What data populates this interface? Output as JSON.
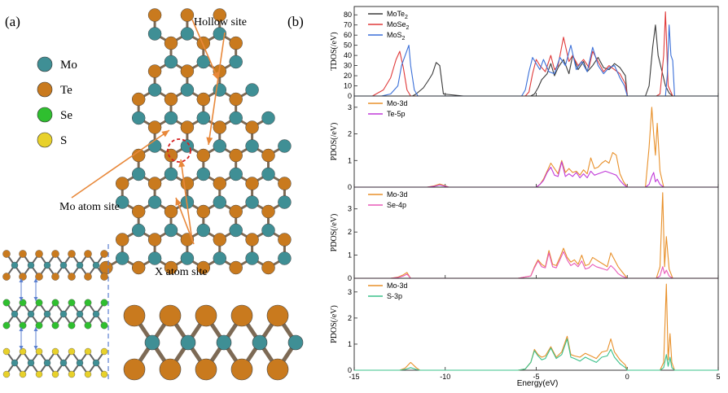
{
  "panel_a": {
    "label": "(a)",
    "atom_legend": [
      {
        "name": "Mo",
        "color": "#3f8f95"
      },
      {
        "name": "Te",
        "color": "#c97a1e"
      },
      {
        "name": "Se",
        "color": "#2fbf2f"
      },
      {
        "name": "S",
        "color": "#e8d12a"
      }
    ],
    "site_labels": {
      "hollow": "Hollow site",
      "mo_atom": "Mo atom site",
      "x_atom": "X atom site"
    },
    "colors": {
      "arrow": "#e8883a",
      "highlight": "#d62020",
      "bond": "#8a8a8a"
    }
  },
  "panel_b": {
    "label": "(b)",
    "xlabel": "Energy(eV)"
  },
  "chart_data": [
    {
      "type": "line",
      "ylabel": "TDOS(/eV)",
      "xlim": [
        -15,
        5
      ],
      "ylim": [
        0,
        85
      ],
      "yticks": [
        0,
        10,
        20,
        30,
        40,
        50,
        60,
        70,
        80
      ],
      "series": [
        {
          "name": "MoTe2",
          "label_base": "MoTe",
          "label_sub": "2",
          "color": "#3a3a3a",
          "x": [
            -15,
            -14,
            -12.6,
            -12.3,
            -12.1,
            -11.95,
            -11.8,
            -11.6,
            -11.2,
            -10.9,
            -10.7,
            -10.5,
            -10.3,
            -10.1,
            -9,
            -5.3,
            -5.1,
            -4.9,
            -4.7,
            -4.4,
            -4.2,
            -4.0,
            -3.8,
            -3.5,
            -3.2,
            -3.0,
            -2.7,
            -2.4,
            -2.2,
            -1.9,
            -1.6,
            -1.3,
            -1.0,
            -0.7,
            -0.4,
            -0.1,
            0,
            1,
            1.2,
            1.4,
            1.55,
            1.7,
            1.9,
            2.1,
            2.3,
            2.5,
            5
          ],
          "y": [
            0,
            0,
            0,
            0,
            0,
            0,
            0,
            2,
            8,
            16,
            22,
            33,
            30,
            2,
            0,
            0,
            2,
            8,
            16,
            22,
            32,
            20,
            28,
            36,
            22,
            40,
            26,
            34,
            24,
            30,
            38,
            28,
            26,
            32,
            28,
            20,
            0,
            0,
            10,
            48,
            70,
            40,
            25,
            10,
            3,
            0,
            0
          ]
        },
        {
          "name": "MoSe2",
          "label_base": "MoSe",
          "label_sub": "2",
          "color": "#e03a3a",
          "x": [
            -15,
            -14,
            -13.8,
            -13.4,
            -13.0,
            -12.7,
            -12.5,
            -12.3,
            -12.1,
            -11.9,
            -11.5,
            -10,
            -5.6,
            -5.4,
            -5.2,
            -5.0,
            -4.8,
            -4.5,
            -4.2,
            -4.0,
            -3.8,
            -3.5,
            -3.2,
            -3.0,
            -2.7,
            -2.4,
            -2.1,
            -1.9,
            -1.6,
            -1.3,
            -1.0,
            -0.7,
            -0.4,
            -0.1,
            0,
            1,
            1.6,
            1.8,
            2.0,
            2.1,
            2.25,
            2.5,
            5
          ],
          "y": [
            0,
            0,
            2,
            6,
            18,
            36,
            44,
            28,
            6,
            0,
            0,
            0,
            0,
            4,
            22,
            36,
            30,
            24,
            40,
            26,
            30,
            58,
            34,
            40,
            30,
            36,
            28,
            44,
            34,
            24,
            30,
            26,
            22,
            12,
            0,
            0,
            0,
            2,
            40,
            83,
            10,
            0,
            0
          ]
        },
        {
          "name": "MoS2",
          "label_base": "MoS",
          "label_sub": "2",
          "color": "#3a6fd8",
          "x": [
            -15,
            -14.2,
            -13.5,
            -13.0,
            -12.6,
            -12.4,
            -12.2,
            -12.0,
            -11.9,
            -11.7,
            -11.5,
            -10,
            -5.8,
            -5.6,
            -5.4,
            -5.2,
            -5.0,
            -4.8,
            -4.6,
            -4.3,
            -4.0,
            -3.7,
            -3.4,
            -3.1,
            -2.8,
            -2.5,
            -2.2,
            -1.9,
            -1.6,
            -1.3,
            -1.0,
            -0.7,
            -0.4,
            -0.15,
            0,
            1,
            2.1,
            2.2,
            2.3,
            2.4,
            2.5,
            2.6,
            5
          ],
          "y": [
            0,
            0,
            0,
            2,
            10,
            30,
            40,
            50,
            30,
            6,
            0,
            0,
            0,
            6,
            24,
            38,
            32,
            26,
            36,
            24,
            22,
            38,
            30,
            50,
            26,
            34,
            24,
            48,
            30,
            22,
            28,
            30,
            18,
            10,
            0,
            0,
            0,
            20,
            70,
            40,
            35,
            0,
            0
          ]
        }
      ]
    },
    {
      "type": "line",
      "ylabel": "PDOS(/eV)",
      "xlim": [
        -15,
        5
      ],
      "ylim": [
        0,
        3.3
      ],
      "yticks": [
        0,
        1,
        2,
        3
      ],
      "series": [
        {
          "name": "Mo-3d",
          "color": "#e8902a",
          "x": [
            -15,
            -11,
            -10.6,
            -10.3,
            -10.0,
            -9.8,
            -5,
            -4.8,
            -4.6,
            -4.4,
            -4.2,
            -4.0,
            -3.8,
            -3.6,
            -3.4,
            -3.2,
            -3.0,
            -2.8,
            -2.6,
            -2.4,
            -2.2,
            -2.0,
            -1.8,
            -1.6,
            -1.4,
            -1.2,
            -1.0,
            -0.8,
            -0.6,
            -0.4,
            -0.2,
            0,
            1.0,
            1.2,
            1.35,
            1.45,
            1.55,
            1.65,
            1.8,
            2.0,
            5
          ],
          "y": [
            0,
            0,
            0.05,
            0.12,
            0.05,
            0,
            0,
            0.1,
            0.3,
            0.6,
            0.9,
            0.7,
            0.5,
            1.0,
            0.55,
            0.7,
            0.55,
            0.6,
            0.45,
            0.65,
            0.5,
            1.1,
            0.7,
            0.75,
            0.9,
            1.0,
            0.9,
            1.3,
            1.2,
            0.5,
            0.2,
            0,
            0,
            1.5,
            3.0,
            2.0,
            1.2,
            2.4,
            0.6,
            0,
            0
          ]
        },
        {
          "name": "Te-5p",
          "color": "#c03ad8",
          "x": [
            -15,
            -11,
            -10.6,
            -10.3,
            -10.0,
            -9.8,
            -5,
            -4.8,
            -4.6,
            -4.4,
            -4.2,
            -4.0,
            -3.8,
            -3.6,
            -3.4,
            -3.2,
            -3.0,
            -2.8,
            -2.6,
            -2.4,
            -2.2,
            -2.0,
            -1.8,
            -1.6,
            -1.4,
            -1.2,
            -1.0,
            -0.8,
            -0.6,
            -0.4,
            -0.2,
            0,
            1.0,
            1.2,
            1.35,
            1.45,
            1.55,
            1.65,
            1.8,
            2.0,
            5
          ],
          "y": [
            0,
            0,
            0.03,
            0.08,
            0.03,
            0,
            0,
            0.1,
            0.25,
            0.55,
            0.75,
            0.45,
            0.4,
            0.95,
            0.4,
            0.5,
            0.4,
            0.55,
            0.35,
            0.5,
            0.35,
            0.6,
            0.45,
            0.5,
            0.55,
            0.6,
            0.55,
            0.5,
            0.45,
            0.25,
            0.1,
            0,
            0,
            0.1,
            0.4,
            0.55,
            0.2,
            0.3,
            0.1,
            0,
            0
          ]
        }
      ]
    },
    {
      "type": "line",
      "ylabel": "PDOS(/eV)",
      "xlim": [
        -15,
        5
      ],
      "ylim": [
        0,
        3.8
      ],
      "yticks": [
        0,
        1,
        2,
        3
      ],
      "series": [
        {
          "name": "Mo-3d",
          "color": "#e8902a",
          "x": [
            -15,
            -13,
            -12.6,
            -12.3,
            -12.1,
            -11.9,
            -6,
            -5.3,
            -5.1,
            -4.9,
            -4.7,
            -4.5,
            -4.3,
            -4.1,
            -3.9,
            -3.7,
            -3.5,
            -3.3,
            -3.1,
            -2.9,
            -2.7,
            -2.5,
            -2.3,
            -2.1,
            -1.9,
            -1.7,
            -1.5,
            -1.3,
            -1.1,
            -0.9,
            -0.7,
            -0.5,
            -0.3,
            0,
            1.6,
            1.8,
            1.95,
            2.05,
            2.15,
            2.3,
            2.5,
            5
          ],
          "y": [
            0,
            0,
            0.05,
            0.15,
            0.25,
            0,
            0,
            0.1,
            0.5,
            0.8,
            0.6,
            0.5,
            1.2,
            0.6,
            0.55,
            0.9,
            1.3,
            0.9,
            0.7,
            0.8,
            0.6,
            1.0,
            0.55,
            0.6,
            0.9,
            0.8,
            0.7,
            0.6,
            0.5,
            1.1,
            0.8,
            0.5,
            0.3,
            0,
            0,
            0.5,
            3.7,
            0.5,
            1.8,
            0.4,
            0,
            0
          ]
        },
        {
          "name": "Se-4p",
          "color": "#e85ab8",
          "x": [
            -15,
            -13,
            -12.6,
            -12.3,
            -12.1,
            -11.9,
            -6,
            -5.3,
            -5.1,
            -4.9,
            -4.7,
            -4.5,
            -4.3,
            -4.1,
            -3.9,
            -3.7,
            -3.5,
            -3.3,
            -3.1,
            -2.9,
            -2.7,
            -2.5,
            -2.3,
            -2.1,
            -1.9,
            -1.7,
            -1.5,
            -1.3,
            -1.1,
            -0.9,
            -0.7,
            -0.5,
            -0.3,
            0,
            1.6,
            1.8,
            1.95,
            2.05,
            2.15,
            2.3,
            2.5,
            5
          ],
          "y": [
            0,
            0,
            0.03,
            0.1,
            0.18,
            0,
            0,
            0.1,
            0.45,
            0.75,
            0.5,
            0.45,
            1.1,
            0.5,
            0.45,
            0.8,
            1.15,
            0.8,
            0.55,
            0.65,
            0.5,
            0.75,
            0.4,
            0.45,
            0.6,
            0.5,
            0.45,
            0.4,
            0.35,
            0.55,
            0.4,
            0.2,
            0.1,
            0,
            0,
            0.1,
            0.5,
            0.2,
            0.35,
            0.1,
            0,
            0
          ]
        }
      ]
    },
    {
      "type": "line",
      "ylabel": "PDOS(/eV)",
      "xlim": [
        -15,
        5
      ],
      "ylim": [
        0,
        3.4
      ],
      "yticks": [
        0,
        1,
        2,
        3
      ],
      "series": [
        {
          "name": "Mo-3d",
          "color": "#e8902a",
          "x": [
            -15,
            -12.5,
            -12.2,
            -11.9,
            -11.6,
            -11.4,
            -6,
            -5.6,
            -5.3,
            -5.1,
            -4.9,
            -4.7,
            -4.5,
            -4.2,
            -3.9,
            -3.6,
            -3.3,
            -3.1,
            -2.9,
            -2.6,
            -2.3,
            -2.0,
            -1.7,
            -1.4,
            -1.1,
            -0.9,
            -0.7,
            -0.4,
            -0.1,
            0,
            1.8,
            2.0,
            2.15,
            2.25,
            2.35,
            2.45,
            2.6,
            5
          ],
          "y": [
            0,
            0,
            0.08,
            0.3,
            0.1,
            0,
            0,
            0.05,
            0.3,
            0.8,
            0.6,
            0.5,
            0.55,
            0.9,
            0.5,
            0.7,
            1.3,
            0.6,
            0.55,
            0.5,
            0.65,
            0.55,
            0.45,
            0.7,
            0.75,
            1.2,
            0.7,
            0.4,
            0.2,
            0,
            0,
            0.3,
            3.3,
            0.4,
            1.4,
            0.3,
            0,
            0
          ]
        },
        {
          "name": "S-3p",
          "color": "#3ac08a",
          "x": [
            -15,
            -12.5,
            -12.2,
            -11.9,
            -11.6,
            -11.4,
            -6,
            -5.6,
            -5.3,
            -5.1,
            -4.9,
            -4.7,
            -4.5,
            -4.2,
            -3.9,
            -3.6,
            -3.3,
            -3.1,
            -2.9,
            -2.6,
            -2.3,
            -2.0,
            -1.7,
            -1.4,
            -1.1,
            -0.9,
            -0.7,
            -0.4,
            -0.1,
            0,
            1.8,
            2.0,
            2.15,
            2.25,
            2.35,
            2.45,
            2.6,
            5
          ],
          "y": [
            0,
            0,
            0.03,
            0.1,
            0.03,
            0,
            0,
            0.05,
            0.3,
            0.75,
            0.55,
            0.4,
            0.45,
            0.85,
            0.45,
            0.6,
            1.2,
            0.5,
            0.45,
            0.35,
            0.5,
            0.4,
            0.3,
            0.5,
            0.55,
            0.8,
            0.5,
            0.25,
            0.1,
            0,
            0,
            0.1,
            0.6,
            0.15,
            0.5,
            0.1,
            0,
            0
          ]
        }
      ]
    }
  ],
  "shared_xticks": [
    -15,
    -10,
    -5,
    0,
    5
  ]
}
